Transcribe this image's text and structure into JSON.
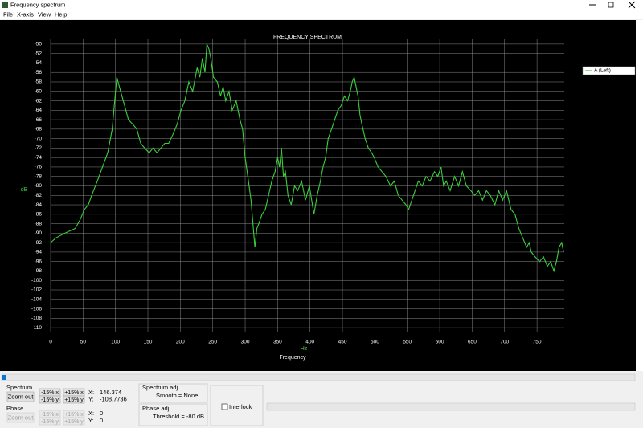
{
  "window": {
    "title": "Frequency spectrum"
  },
  "menu": [
    "File",
    "X-axis",
    "View",
    "Help"
  ],
  "chart_data": {
    "type": "line",
    "title": "FREQUENCY SPECTRUM",
    "x_unit": "Hz",
    "x_label": "Frequency",
    "y_label": "dB",
    "x": [
      0,
      8,
      15,
      22,
      30,
      38,
      46,
      52,
      58,
      66,
      72,
      80,
      88,
      95,
      102,
      108,
      114,
      120,
      127,
      133,
      139,
      145,
      152,
      158,
      164,
      170,
      176,
      182,
      189,
      195,
      201,
      207,
      213,
      219,
      226,
      230,
      234,
      238,
      241,
      244,
      247,
      251,
      257,
      262,
      266,
      270,
      275,
      280,
      286,
      292,
      296,
      300,
      305,
      309,
      312,
      315,
      318,
      321,
      326,
      331,
      336,
      341,
      346,
      350,
      353,
      356,
      359,
      362,
      366,
      371,
      376,
      381,
      387,
      393,
      399,
      406,
      411,
      416,
      420,
      424,
      428,
      433,
      438,
      443,
      448,
      453,
      458,
      462,
      465,
      468,
      471,
      474,
      477,
      480,
      485,
      490,
      495,
      499,
      505,
      511,
      517,
      524,
      530,
      536,
      542,
      548,
      552,
      557,
      562,
      567,
      573,
      579,
      585,
      592,
      597,
      602,
      606,
      610,
      616,
      623,
      629,
      635,
      641,
      648,
      654,
      660,
      666,
      672,
      678,
      685,
      691,
      697,
      703,
      710,
      716,
      722,
      728,
      734,
      738,
      741,
      747,
      754,
      760,
      766,
      771,
      776,
      780,
      784,
      788,
      791
    ],
    "series": [
      {
        "name": "A (Left)",
        "color": "#3ccf3c",
        "values": [
          -92,
          -91,
          -90.5,
          -90,
          -89.5,
          -89,
          -87,
          -85,
          -84,
          -81,
          -79,
          -76,
          -73,
          -68,
          -57,
          -60,
          -63,
          -66,
          -67,
          -68,
          -71,
          -72,
          -73,
          -72,
          -73,
          -72,
          -71,
          -71,
          -69,
          -67,
          -64,
          -62,
          -58,
          -60,
          -55,
          -57,
          -53,
          -56,
          -50,
          -51,
          -53,
          -57,
          -58,
          -61,
          -59,
          -62,
          -60,
          -64,
          -62,
          -66,
          -68,
          -74,
          -79,
          -83,
          -88,
          -93,
          -89,
          -88,
          -86,
          -85,
          -82,
          -79,
          -77,
          -74,
          -76,
          -72,
          -78,
          -77,
          -82,
          -84,
          -80,
          -81,
          -79,
          -83,
          -80,
          -86,
          -82,
          -79,
          -76,
          -74,
          -70,
          -68,
          -66,
          -64,
          -63,
          -61,
          -62,
          -60,
          -58,
          -57,
          -59,
          -61,
          -65,
          -67,
          -70,
          -72,
          -73,
          -74,
          -76,
          -77,
          -78,
          -80,
          -79,
          -82,
          -83,
          -84,
          -85,
          -83,
          -81,
          -79,
          -80,
          -78,
          -79,
          -77,
          -78,
          -76,
          -80,
          -79,
          -81,
          -78,
          -80,
          -77,
          -80,
          -81,
          -82,
          -81,
          -83,
          -81,
          -82,
          -84,
          -81,
          -83,
          -81,
          -85,
          -86,
          -89,
          -91,
          -93,
          -92,
          -94,
          -95,
          -96,
          -95,
          -97,
          -96,
          -98,
          -96,
          -93,
          -92,
          -94
        ]
      }
    ],
    "xlim": [
      0,
      792
    ],
    "ylim": [
      -111,
      -49
    ],
    "xticks": [
      0,
      50,
      100,
      150,
      200,
      250,
      300,
      350,
      400,
      450,
      500,
      550,
      600,
      650,
      700,
      750
    ],
    "yticks": [
      -50,
      -52,
      -54,
      -56,
      -58,
      -60,
      -62,
      -64,
      -66,
      -68,
      -70,
      -72,
      -74,
      -76,
      -78,
      -80,
      -82,
      -84,
      -86,
      -88,
      -90,
      -92,
      -94,
      -96,
      -98,
      -100,
      -102,
      -104,
      -106,
      -108,
      -110
    ],
    "grid": true,
    "legend": "upper right"
  },
  "controls": {
    "spectrum": {
      "label": "Spectrum",
      "zoom_out": "Zoom out",
      "buttons": [
        "-15% x",
        "+15% x",
        "-15% y",
        "+15% y"
      ],
      "x_label": "X:",
      "x_value": "146.374",
      "y_label": "Y:",
      "y_value": "-108.7736"
    },
    "phase": {
      "label": "Phase",
      "zoom_out": "Zoom out",
      "buttons": [
        "-15% x",
        "+15% x",
        "-15% y",
        "+15% y"
      ],
      "x_label": "X:",
      "x_value": "0",
      "y_label": "Y:",
      "y_value": "0"
    },
    "spectrum_adj": {
      "title": "Spectrum adj",
      "text": "Smooth = None"
    },
    "phase_adj": {
      "title": "Phase adj",
      "text": "Threshold = -80 dB"
    },
    "interlock": "Interlock"
  }
}
